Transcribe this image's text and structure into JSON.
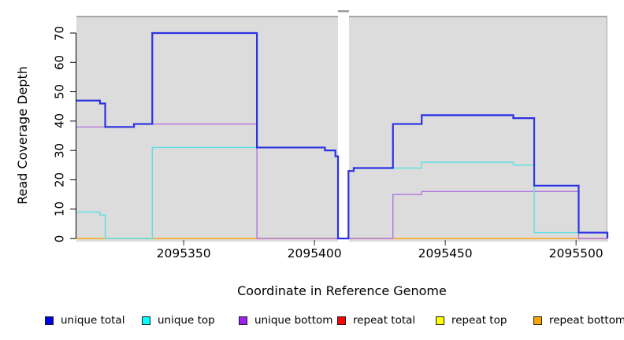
{
  "figure": {
    "xlabel": "Coordinate in Reference Genome",
    "ylabel": "Read Coverage Depth"
  },
  "legend": {
    "items": [
      {
        "label": "unique total",
        "color": "#0000EE"
      },
      {
        "label": "unique top",
        "color": "#00FFFF"
      },
      {
        "label": "unique bottom",
        "color": "#A020F0"
      },
      {
        "label": "repeat total",
        "color": "#FF0000"
      },
      {
        "label": "repeat top",
        "color": "#FFFF00"
      },
      {
        "label": "repeat bottom",
        "color": "#FFA500"
      }
    ]
  },
  "chart_data": {
    "type": "line",
    "step": true,
    "title": "",
    "xlabel": "Coordinate in Reference Genome",
    "ylabel": "Read Coverage Depth",
    "x_ticks": [
      2095350,
      2095400,
      2095450,
      2095500
    ],
    "y_ticks": [
      0,
      10,
      20,
      30,
      40,
      50,
      60,
      70
    ],
    "xlim": [
      2095309,
      2095512
    ],
    "ylim": [
      0,
      75
    ],
    "grid": false,
    "legend_position": "bottom",
    "plot_background": "#DCDCDC",
    "masked_gap": {
      "x_start": 2095409,
      "x_end": 2095413.2
    },
    "series": [
      {
        "name": "repeat total",
        "color": "#FF0000",
        "line_color": "#E13B3B",
        "line_width": 1.1,
        "steps": [
          [
            2095309,
            0
          ],
          [
            2095512,
            0
          ]
        ]
      },
      {
        "name": "repeat top",
        "color": "#FFFF00",
        "line_color": "#EEEE00",
        "line_width": 1.1,
        "steps": [
          [
            2095309,
            0
          ],
          [
            2095512,
            0
          ]
        ]
      },
      {
        "name": "repeat bottom",
        "color": "#FFA500",
        "line_color": "#FFA513",
        "line_width": 1.6,
        "steps": [
          [
            2095309,
            0
          ],
          [
            2095512,
            0
          ]
        ]
      },
      {
        "name": "unique bottom",
        "color": "#A020F0",
        "line_color": "#B175DF",
        "line_width": 1.4,
        "steps": [
          [
            2095309,
            38
          ],
          [
            2095331,
            39
          ],
          [
            2095378,
            0
          ],
          [
            2095430,
            15
          ],
          [
            2095441,
            16
          ],
          [
            2095501,
            0
          ],
          [
            2095512,
            0
          ]
        ]
      },
      {
        "name": "unique top",
        "color": "#00FFFF",
        "line_color": "#5ADFE2",
        "line_width": 1.4,
        "steps": [
          [
            2095309,
            9
          ],
          [
            2095318,
            8
          ],
          [
            2095320,
            0
          ],
          [
            2095338,
            31
          ],
          [
            2095404,
            30
          ],
          [
            2095408,
            28
          ],
          [
            2095409,
            0
          ],
          [
            2095413,
            23
          ],
          [
            2095415,
            24
          ],
          [
            2095441,
            26
          ],
          [
            2095476,
            25
          ],
          [
            2095484,
            2
          ],
          [
            2095512,
            0
          ]
        ]
      },
      {
        "name": "unique total",
        "color": "#0000EE",
        "line_color": "#2A32E2",
        "line_width": 2.2,
        "steps": [
          [
            2095309,
            47
          ],
          [
            2095318,
            46
          ],
          [
            2095320,
            38
          ],
          [
            2095331,
            39
          ],
          [
            2095338,
            70
          ],
          [
            2095378,
            31
          ],
          [
            2095404,
            30
          ],
          [
            2095408,
            28
          ],
          [
            2095409,
            0
          ],
          [
            2095413,
            23
          ],
          [
            2095415,
            24
          ],
          [
            2095430,
            39
          ],
          [
            2095441,
            42
          ],
          [
            2095476,
            41
          ],
          [
            2095484,
            18
          ],
          [
            2095501,
            2
          ],
          [
            2095512,
            0
          ]
        ]
      }
    ]
  }
}
